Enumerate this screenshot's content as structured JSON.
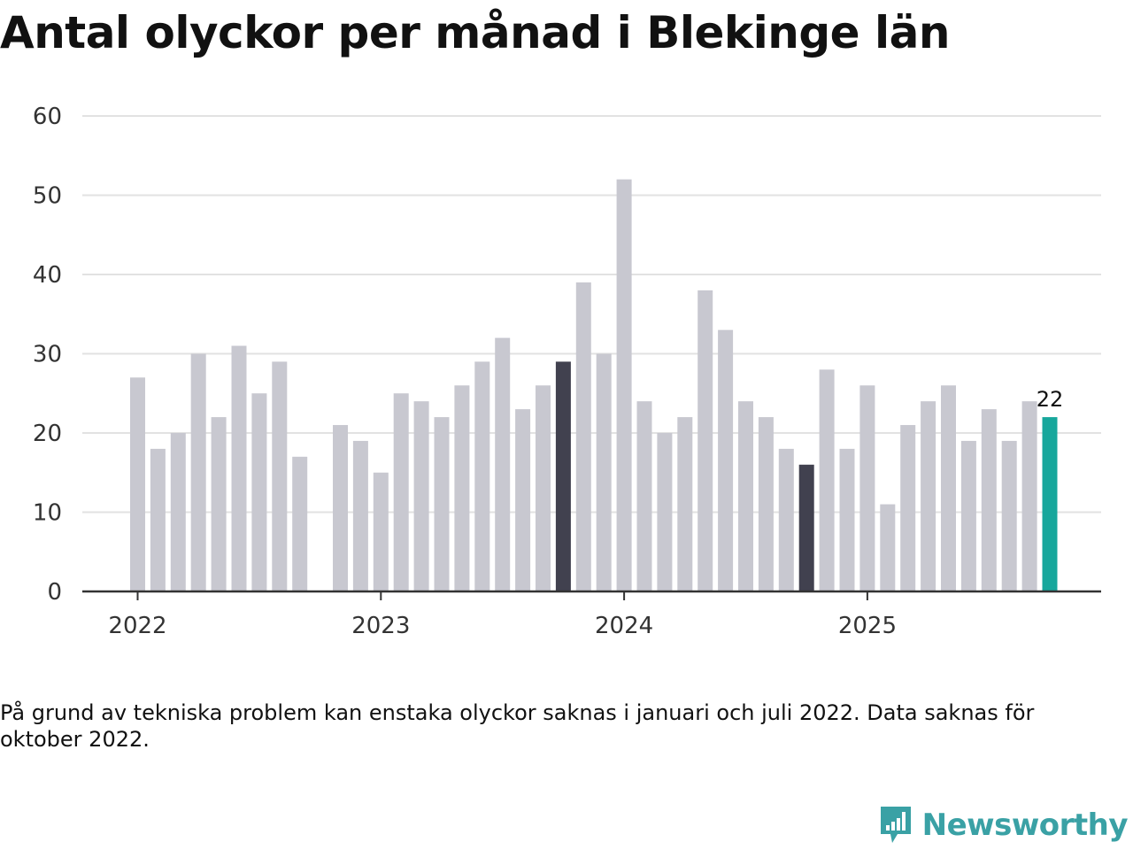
{
  "title": "Antal olyckor per månad i Blekinge län",
  "note": "På grund av tekniska problem kan enstaka olyckor saknas i januari och juli 2022. Data saknas för oktober 2022.",
  "brand": "Newsworthy",
  "colors": {
    "default": "#c8c8d0",
    "highlight": "#41414f",
    "latest": "#17a79c",
    "grid": "#e2e2e2",
    "axis": "#333333"
  },
  "chart_data": {
    "type": "bar",
    "ylim": [
      0,
      60
    ],
    "yticks": [
      0,
      10,
      20,
      30,
      40,
      50,
      60
    ],
    "year_labels": [
      "2022",
      "2023",
      "2024",
      "2025"
    ],
    "categories": [
      "2022-01",
      "2022-02",
      "2022-03",
      "2022-04",
      "2022-05",
      "2022-06",
      "2022-07",
      "2022-08",
      "2022-09",
      "2022-10",
      "2022-11",
      "2022-12",
      "2023-01",
      "2023-02",
      "2023-03",
      "2023-04",
      "2023-05",
      "2023-06",
      "2023-07",
      "2023-08",
      "2023-09",
      "2023-10",
      "2023-11",
      "2023-12",
      "2024-01",
      "2024-02",
      "2024-03",
      "2024-04",
      "2024-05",
      "2024-06",
      "2024-07",
      "2024-08",
      "2024-09",
      "2024-10",
      "2024-11",
      "2024-12",
      "2025-01",
      "2025-02",
      "2025-03",
      "2025-04",
      "2025-05",
      "2025-06",
      "2025-07",
      "2025-08",
      "2025-09",
      "2025-10"
    ],
    "values": [
      27,
      18,
      20,
      30,
      22,
      31,
      25,
      29,
      17,
      null,
      21,
      19,
      15,
      25,
      24,
      22,
      26,
      29,
      32,
      23,
      26,
      29,
      39,
      30,
      52,
      24,
      20,
      22,
      38,
      33,
      24,
      22,
      18,
      16,
      28,
      18,
      26,
      11,
      21,
      24,
      26,
      19,
      23,
      19,
      24,
      22
    ],
    "highlighted": [
      "2023-10",
      "2024-10"
    ],
    "latest": "2025-10",
    "data_labels": [
      {
        "category": "2025-10",
        "text": "22"
      }
    ],
    "grid": true
  }
}
